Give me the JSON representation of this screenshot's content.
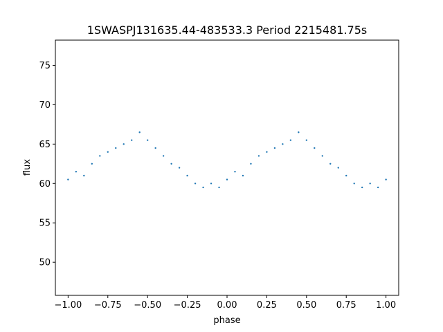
{
  "chart_data": {
    "type": "scatter",
    "title": "1SWASPJ131635.44-483533.3 Period 2215481.75s",
    "xlabel": "phase",
    "ylabel": "flux",
    "xlim": [
      -1.08,
      1.08
    ],
    "ylim": [
      45.8,
      78.2
    ],
    "grid": false,
    "legend": "none",
    "x_ticks": [
      -1.0,
      -0.75,
      -0.5,
      -0.25,
      0.0,
      0.25,
      0.5,
      0.75,
      1.0
    ],
    "x_tick_labels": [
      "−1.00",
      "−0.75",
      "−0.50",
      "−0.25",
      "0.00",
      "0.25",
      "0.50",
      "0.75",
      "1.00"
    ],
    "y_ticks": [
      50,
      55,
      60,
      65,
      70,
      75
    ],
    "y_tick_labels": [
      "50",
      "55",
      "60",
      "65",
      "70",
      "75"
    ],
    "marker_color": "#1f77b4",
    "series": [
      {
        "x": [
          -1.0,
          -0.95,
          -0.9,
          -0.85,
          -0.8,
          -0.75,
          -0.7,
          -0.65,
          -0.6,
          -0.55,
          -0.5,
          -0.45,
          -0.4,
          -0.35,
          -0.3,
          -0.25,
          -0.2,
          -0.15,
          -0.1,
          -0.05,
          0.0,
          0.05,
          0.1,
          0.15,
          0.2,
          0.25,
          0.3,
          0.35,
          0.4,
          0.45,
          0.5,
          0.55,
          0.6,
          0.65,
          0.7,
          0.75,
          0.8,
          0.85,
          0.9,
          0.95,
          1.0
        ],
        "y": [
          60.5,
          61.5,
          61.0,
          62.5,
          63.5,
          64.0,
          64.5,
          65.0,
          65.5,
          66.5,
          65.5,
          64.5,
          63.5,
          62.5,
          62.0,
          61.0,
          60.0,
          59.5,
          60.0,
          59.5,
          60.5,
          61.5,
          61.0,
          62.5,
          63.5,
          64.0,
          64.5,
          65.0,
          65.5,
          66.5,
          65.5,
          64.5,
          63.5,
          62.5,
          62.0,
          61.0,
          60.0,
          59.5,
          60.0,
          59.5,
          60.5
        ]
      }
    ]
  }
}
